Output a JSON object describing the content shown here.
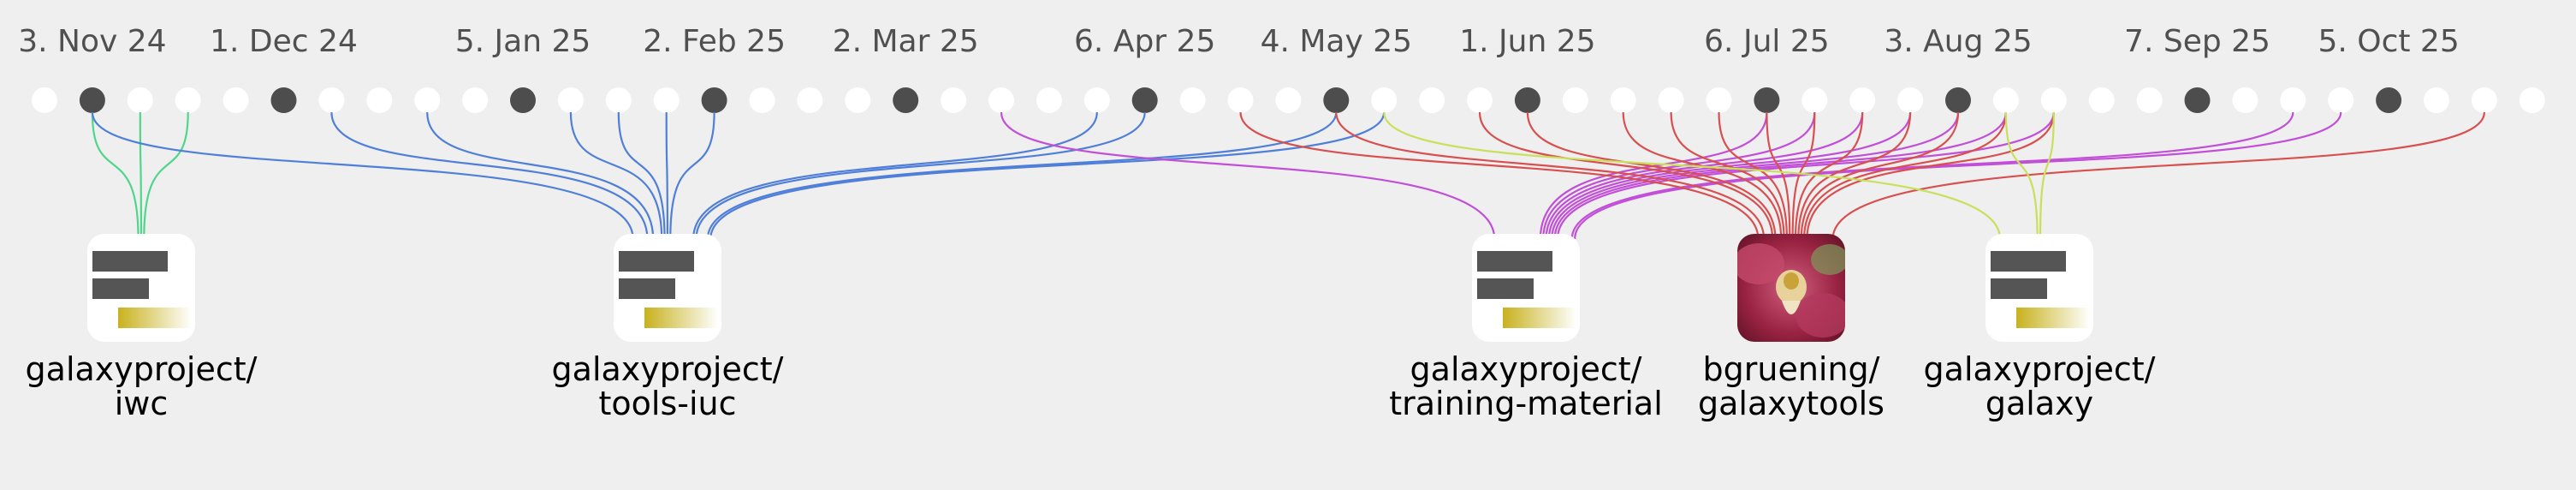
{
  "timeline": {
    "labels": [
      "3. Nov 24",
      "1. Dec 24",
      "5. Jan 25",
      "2. Feb 25",
      "2. Mar 25",
      "6. Apr 25",
      "4. May 25",
      "1. Jun 25",
      "6. Jul 25",
      "3. Aug 25",
      "7. Sep 25",
      "5. Oct 25"
    ],
    "week_count": 53,
    "active_weeks": [
      1,
      5,
      10,
      14,
      18,
      23,
      27,
      31,
      36,
      40,
      45,
      49
    ]
  },
  "colors": {
    "iwc": "#4fd68a",
    "tools_iuc": "#4f7fd8",
    "training_material": "#c24fd8",
    "galaxytools": "#d84f4f",
    "galaxy": "#c8e05a"
  },
  "repos": [
    {
      "id": "iwc",
      "owner": "galaxyproject/",
      "name": "iwc",
      "icon": "placeholder",
      "color": "#4fd68a",
      "weeks": [
        1,
        2,
        3
      ]
    },
    {
      "id": "tools-iuc",
      "owner": "galaxyproject/",
      "name": "tools-iuc",
      "icon": "placeholder",
      "color": "#4f7fd8",
      "weeks": [
        1,
        6,
        8,
        11,
        12,
        13,
        14,
        22,
        23,
        27,
        28
      ]
    },
    {
      "id": "training-material",
      "owner": "galaxyproject/",
      "name": "training-material",
      "icon": "placeholder",
      "color": "#c24fd8",
      "weeks": [
        20,
        36,
        37,
        38,
        39,
        40,
        41,
        42,
        47,
        48
      ]
    },
    {
      "id": "galaxytools",
      "owner": "bgruening/",
      "name": "galaxytools",
      "icon": "photo",
      "color": "#d84f4f",
      "weeks": [
        25,
        27,
        30,
        31,
        33,
        34,
        35,
        36,
        37,
        38,
        39,
        40,
        41,
        42,
        51
      ]
    },
    {
      "id": "galaxy",
      "owner": "galaxyproject/",
      "name": "galaxy",
      "icon": "placeholder",
      "color": "#c8e05a",
      "weeks": [
        28,
        41,
        42
      ]
    }
  ]
}
